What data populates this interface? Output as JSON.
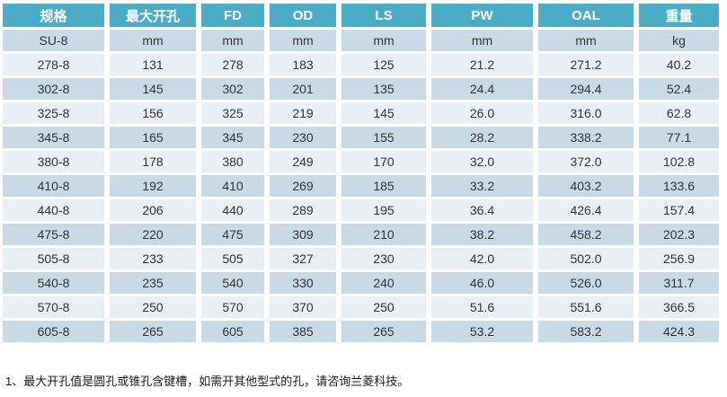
{
  "colors": {
    "header_bg": "#4BACC6",
    "header_text": "#FFFFFF",
    "band_dark": "#C9DAE7",
    "band_light": "#E8EFF5",
    "body_text": "#333333"
  },
  "table": {
    "columns": [
      "规格",
      "最大开孔",
      "FD",
      "OD",
      "LS",
      "PW",
      "OAL",
      "重量"
    ],
    "units": [
      "SU-8",
      "mm",
      "mm",
      "mm",
      "mm",
      "mm",
      "mm",
      "kg"
    ],
    "rows": [
      [
        "278-8",
        "131",
        "278",
        "183",
        "125",
        "21.2",
        "271.2",
        "40.2"
      ],
      [
        "302-8",
        "145",
        "302",
        "201",
        "135",
        "24.4",
        "294.4",
        "52.4"
      ],
      [
        "325-8",
        "156",
        "325",
        "219",
        "145",
        "26.0",
        "316.0",
        "62.8"
      ],
      [
        "345-8",
        "165",
        "345",
        "230",
        "155",
        "28.2",
        "338.2",
        "77.1"
      ],
      [
        "380-8",
        "178",
        "380",
        "249",
        "170",
        "32.0",
        "372.0",
        "102.8"
      ],
      [
        "410-8",
        "192",
        "410",
        "269",
        "185",
        "33.2",
        "403.2",
        "133.6"
      ],
      [
        "440-8",
        "206",
        "440",
        "289",
        "195",
        "36.4",
        "426.4",
        "157.4"
      ],
      [
        "475-8",
        "220",
        "475",
        "309",
        "210",
        "38.2",
        "458.2",
        "202.3"
      ],
      [
        "505-8",
        "233",
        "505",
        "327",
        "230",
        "42.0",
        "502.0",
        "256.9"
      ],
      [
        "540-8",
        "235",
        "540",
        "330",
        "240",
        "46.0",
        "526.0",
        "311.7"
      ],
      [
        "570-8",
        "250",
        "570",
        "370",
        "250",
        "51.6",
        "551.6",
        "366.5"
      ],
      [
        "605-8",
        "265",
        "605",
        "385",
        "265",
        "53.2",
        "583.2",
        "424.3"
      ]
    ]
  },
  "footnote": "1、最大开孔值是圆孔或锥孔含键槽，如需开其他型式的孔，请咨询兰菱科技。"
}
